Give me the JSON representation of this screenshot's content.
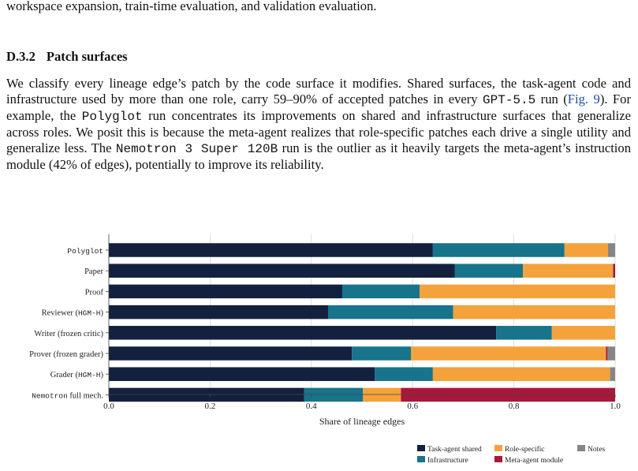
{
  "top_text": "workspace expansion, train-time evaluation, and validation evaluation.",
  "section": {
    "number": "D.3.2",
    "title": "Patch surfaces"
  },
  "paragraph": {
    "p1": "We classify every lineage edge’s patch by the code surface it modifies. Shared surfaces, the task-agent code and infrastructure used by more than one role, carry 59–90% of accepted patches in every ",
    "gpt": "GPT-5.5",
    "p2": " run (",
    "ref": "Fig. 9",
    "p3": "). For example, the ",
    "polyglot": "Polyglot",
    "p4": " run concentrates its improvements on shared and infrastructure surfaces that generalize across roles. We posit this is because the meta-agent realizes that role-specific patches each drive a single utility and generalize less. The ",
    "nemotron": "Nemotron 3 Super 120B",
    "p5": " run is the outlier as it heavily targets the meta-agent’s instruction module (42% of edges), potentially to improve its reliability."
  },
  "chart_data": {
    "type": "bar",
    "orientation": "horizontal",
    "stacked": true,
    "xlabel": "Share of lineage edges",
    "xlim": [
      0,
      1.0
    ],
    "xticks": [
      "0.0",
      "0.2",
      "0.4",
      "0.6",
      "0.8",
      "1.0"
    ],
    "grid": true,
    "legend_position": "bottom-right",
    "categories": [
      "Polyglot",
      "Paper",
      "Proof",
      "Reviewer (HGM-H)",
      "Writer (frozen critic)",
      "Prover (frozen grader)",
      "Grader (HGM-H)",
      "Nemotron full mech."
    ],
    "series": [
      {
        "name": "Task-agent shared",
        "color": "#13213f",
        "values": [
          0.64,
          0.683,
          0.461,
          0.433,
          0.765,
          0.48,
          0.525,
          0.386
        ]
      },
      {
        "name": "Infrastructure",
        "color": "#17748a",
        "values": [
          0.26,
          0.135,
          0.153,
          0.247,
          0.11,
          0.117,
          0.115,
          0.116
        ]
      },
      {
        "name": "Role-specific",
        "color": "#f4a23b",
        "values": [
          0.086,
          0.178,
          0.386,
          0.32,
          0.125,
          0.385,
          0.35,
          0.075
        ]
      },
      {
        "name": "Meta-agent module",
        "color": "#a8173c",
        "values": [
          0,
          0.004,
          0,
          0,
          0,
          0.003,
          0,
          0.423
        ]
      },
      {
        "name": "Notes",
        "color": "#858585",
        "values": [
          0.014,
          0,
          0,
          0,
          0,
          0.015,
          0.01,
          0
        ]
      }
    ]
  }
}
